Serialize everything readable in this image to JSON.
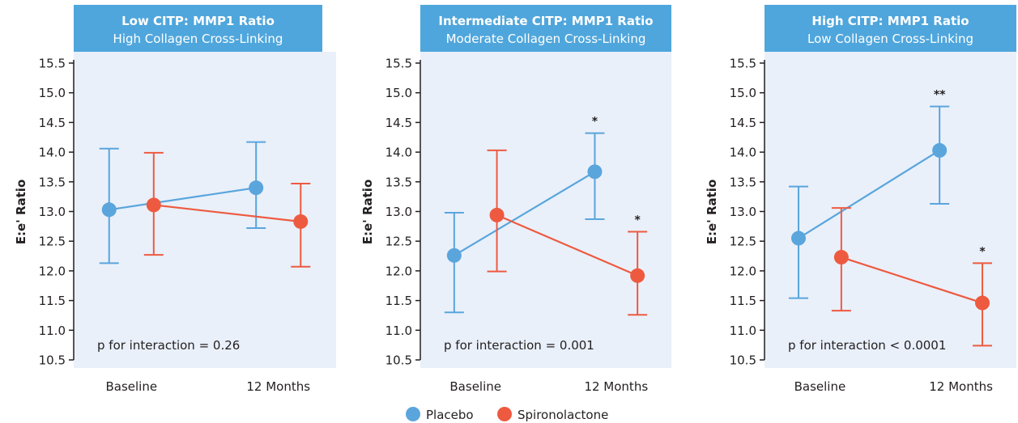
{
  "legend": {
    "placebo_label": "Placebo",
    "spironolactone_label": "Spironolactone"
  },
  "colors": {
    "placebo": "#5aa5dc",
    "spironolactone": "#ee5a40",
    "panel_bg": "#e9f0fa",
    "header_bg": "#4fa6dc",
    "header_text": "#ffffff",
    "axis": "#231f20"
  },
  "chart_data": [
    {
      "type": "line",
      "title": "Low CITP: MMP1 Ratio",
      "subtitle": "High Collagen Cross-Linking",
      "ylabel": "E:e' Ratio",
      "xlabel": "",
      "categories": [
        "Baseline",
        "12 Months"
      ],
      "ylim": [
        10.5,
        15.5
      ],
      "yticks": [
        "15.5",
        "15.0",
        "14.5",
        "14.0",
        "13.5",
        "13.0",
        "12.5",
        "12.0",
        "11.5",
        "11.0",
        "10.5"
      ],
      "annotation": "p for interaction = 0.26",
      "series": [
        {
          "name": "Placebo",
          "values": [
            13.03,
            13.4
          ],
          "lower": [
            12.13,
            12.72
          ],
          "upper": [
            14.06,
            14.17
          ],
          "marks": [
            "",
            ""
          ]
        },
        {
          "name": "Spironolactone",
          "values": [
            13.11,
            12.83
          ],
          "lower": [
            12.27,
            12.07
          ],
          "upper": [
            13.99,
            13.47
          ],
          "marks": [
            "",
            ""
          ]
        }
      ]
    },
    {
      "type": "line",
      "title": "Intermediate CITP: MMP1 Ratio",
      "subtitle": "Moderate Collagen Cross-Linking",
      "ylabel": "E:e' Ratio",
      "xlabel": "",
      "categories": [
        "Baseline",
        "12 Months"
      ],
      "ylim": [
        10.5,
        15.5
      ],
      "yticks": [
        "15.5",
        "15.0",
        "14.5",
        "14.0",
        "13.5",
        "13.0",
        "12.5",
        "12.0",
        "11.5",
        "11.0",
        "10.5"
      ],
      "annotation": "p for interaction = 0.001",
      "series": [
        {
          "name": "Placebo",
          "values": [
            12.26,
            13.67
          ],
          "lower": [
            11.3,
            12.87
          ],
          "upper": [
            12.98,
            14.32
          ],
          "marks": [
            "",
            "*"
          ]
        },
        {
          "name": "Spironolactone",
          "values": [
            12.94,
            11.92
          ],
          "lower": [
            11.99,
            11.26
          ],
          "upper": [
            14.03,
            12.66
          ],
          "marks": [
            "",
            "*"
          ]
        }
      ]
    },
    {
      "type": "line",
      "title": "High CITP: MMP1 Ratio",
      "subtitle": "Low Collagen Cross-Linking",
      "ylabel": "E:e' Ratio",
      "xlabel": "",
      "categories": [
        "Baseline",
        "12 Months"
      ],
      "ylim": [
        10.5,
        15.5
      ],
      "yticks": [
        "15.5",
        "15.0",
        "14.5",
        "14.0",
        "13.5",
        "13.0",
        "12.5",
        "12.0",
        "11.5",
        "11.0",
        "10.5"
      ],
      "annotation": "p for interaction < 0.0001",
      "series": [
        {
          "name": "Placebo",
          "values": [
            12.55,
            14.03
          ],
          "lower": [
            11.54,
            13.13
          ],
          "upper": [
            13.42,
            14.77
          ],
          "marks": [
            "",
            "**"
          ]
        },
        {
          "name": "Spironolactone",
          "values": [
            12.23,
            11.46
          ],
          "lower": [
            11.33,
            10.74
          ],
          "upper": [
            13.06,
            12.13
          ],
          "marks": [
            "",
            "*"
          ]
        }
      ]
    }
  ]
}
